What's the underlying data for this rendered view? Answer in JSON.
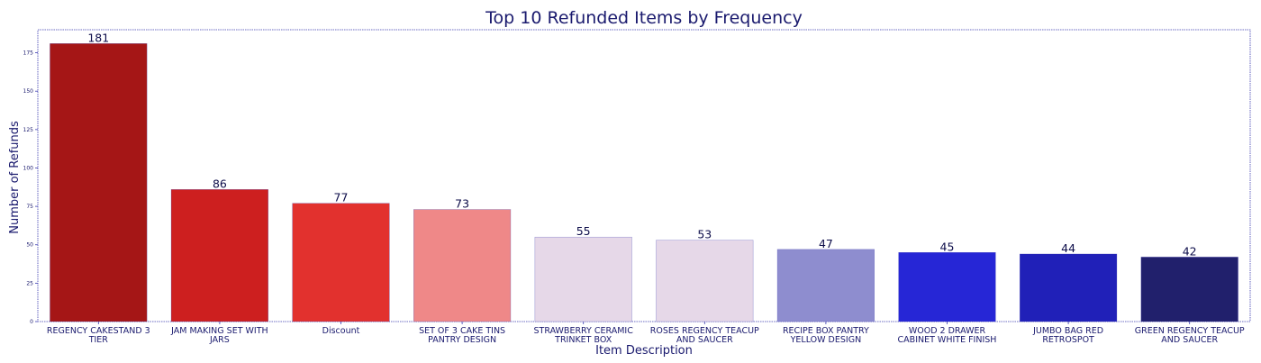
{
  "chart_data": {
    "type": "bar",
    "title": "Top 10 Refunded Items by Frequency",
    "xlabel": "Item Description",
    "ylabel": "Number of Refunds",
    "ylim": [
      0,
      190
    ],
    "yticks": [
      0,
      25,
      50,
      75,
      100,
      125,
      150,
      175
    ],
    "grid": false,
    "categories": [
      [
        "REGENCY CAKESTAND 3",
        "TIER"
      ],
      [
        "JAM MAKING SET WITH",
        "JARS"
      ],
      [
        "Discount"
      ],
      [
        "SET OF 3 CAKE TINS",
        "PANTRY DESIGN"
      ],
      [
        "STRAWBERRY CERAMIC",
        "TRINKET BOX"
      ],
      [
        "ROSES REGENCY TEACUP",
        "AND SAUCER"
      ],
      [
        "RECIPE BOX PANTRY",
        "YELLOW DESIGN"
      ],
      [
        "WOOD 2 DRAWER",
        "CABINET WHITE FINISH"
      ],
      [
        "JUMBO BAG RED",
        "RETROSPOT"
      ],
      [
        "GREEN REGENCY TEACUP",
        "AND SAUCER"
      ]
    ],
    "values": [
      181,
      86,
      77,
      73,
      55,
      53,
      47,
      45,
      44,
      42
    ],
    "colors": [
      "#a51616",
      "#cd1f1f",
      "#e2312e",
      "#ef8888",
      "#e6d8e8",
      "#e6d8e8",
      "#8e8dcf",
      "#2626d6",
      "#2020b8",
      "#21206c"
    ],
    "frame_color": "#3b3bb0"
  }
}
